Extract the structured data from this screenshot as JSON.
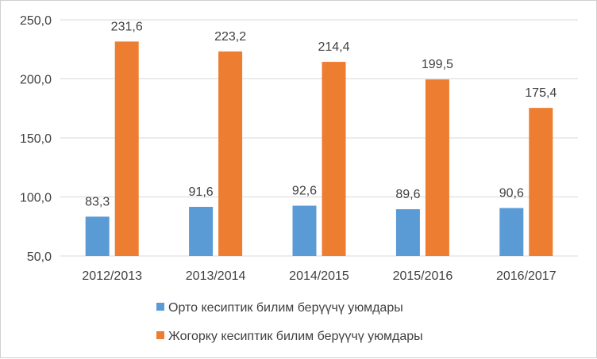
{
  "chart_data": {
    "type": "bar",
    "categories": [
      "2012/2013",
      "2013/2014",
      "2014/2015",
      "2015/2016",
      "2016/2017"
    ],
    "series": [
      {
        "name": "Орто кесиптик билим берүүчү уюмдары",
        "values": [
          83.3,
          91.6,
          92.6,
          89.6,
          90.6
        ],
        "labels": [
          "83,3",
          "91,6",
          "92,6",
          "89,6",
          "90,6"
        ],
        "color": "#5b9bd5"
      },
      {
        "name": "Жогорку кесиптик билим берүүчү уюмдары",
        "values": [
          231.6,
          223.2,
          214.4,
          199.5,
          175.4
        ],
        "labels": [
          "231,6",
          "223,2",
          "214,4",
          "199,5",
          "175,4"
        ],
        "color": "#ed7d31"
      }
    ],
    "yticks": [
      50,
      100,
      150,
      200,
      250
    ],
    "ytick_labels": [
      "50,0",
      "100,0",
      "150,0",
      "200,0",
      "250,0"
    ],
    "ylim": [
      50,
      250
    ],
    "grid": true,
    "gridline_color": "#d9d9d9",
    "legend_position": "bottom"
  }
}
